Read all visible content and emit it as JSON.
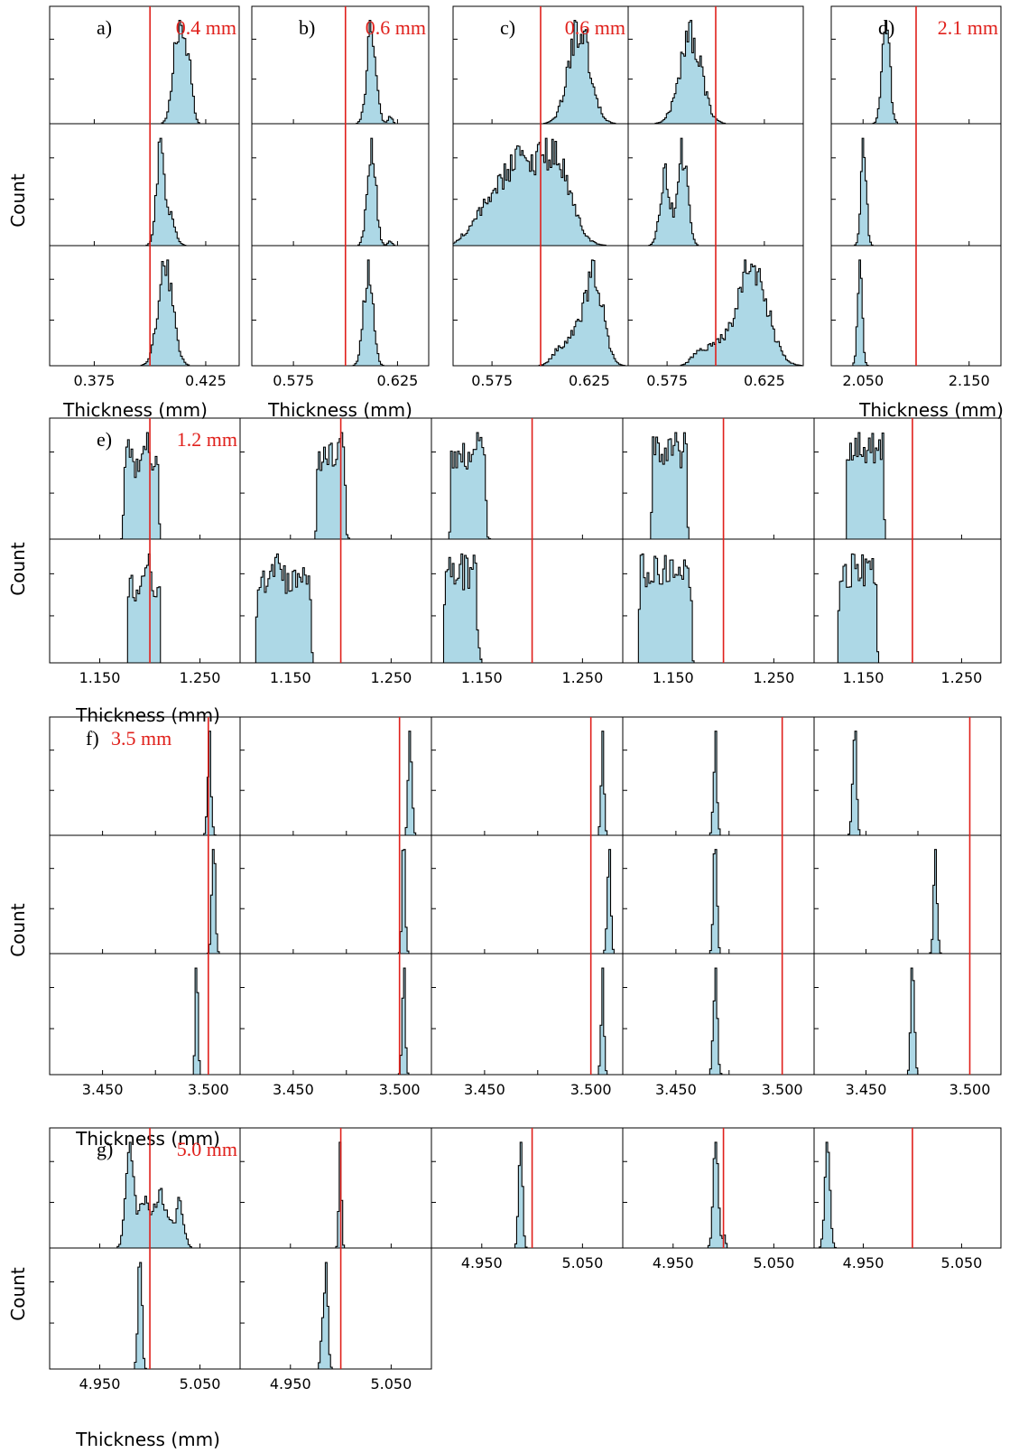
{
  "figure": {
    "count_label": "Count",
    "thickness_label": "Thickness (mm)"
  },
  "colors": {
    "fill": "#add8e6",
    "outline": "#000000",
    "nominal_line": "#e0201b"
  },
  "chart_data": [
    {
      "id": "a",
      "panel_label": "a)",
      "nominal_label": "0.4 mm",
      "nominal": 0.4,
      "type": "histogram",
      "xlim": [
        0.355,
        0.44
      ],
      "ticks": [
        0.375,
        0.425
      ],
      "tick_labels": [
        "0.375",
        "0.425"
      ],
      "xlabel": "Thickness (mm)",
      "ylabel": "Count",
      "columns": [
        [
          {
            "ymax": 1.0,
            "peaks": [
              {
                "c": 0.413,
                "w": 0.0024,
                "a": 1.0
              },
              {
                "c": 0.4175,
                "w": 0.0016,
                "a": 0.45
              }
            ]
          },
          {
            "ymax": 1.0,
            "peaks": [
              {
                "c": 0.4045,
                "w": 0.0018,
                "a": 1.0
              },
              {
                "c": 0.4085,
                "w": 0.0025,
                "a": 0.35
              }
            ]
          },
          {
            "ymax": 1.0,
            "peaks": [
              {
                "c": 0.407,
                "w": 0.0033,
                "a": 1.0
              }
            ]
          }
        ]
      ]
    },
    {
      "id": "b",
      "panel_label": "b)",
      "nominal_label": "0.6 mm",
      "nominal": 0.6,
      "type": "histogram",
      "xlim": [
        0.555,
        0.64
      ],
      "ticks": [
        0.575,
        0.625
      ],
      "tick_labels": [
        "0.575",
        "0.625"
      ],
      "xlabel": "Thickness (mm)",
      "ylabel": "Count",
      "columns": [
        [
          {
            "ymax": 1.0,
            "peaks": [
              {
                "c": 0.6125,
                "w": 0.0022,
                "a": 1.0
              },
              {
                "c": 0.6215,
                "w": 0.001,
                "a": 0.08
              }
            ]
          },
          {
            "ymax": 1.0,
            "peaks": [
              {
                "c": 0.6125,
                "w": 0.002,
                "a": 1.0
              },
              {
                "c": 0.6215,
                "w": 0.001,
                "a": 0.04
              }
            ]
          },
          {
            "ymax": 1.0,
            "peaks": [
              {
                "c": 0.611,
                "w": 0.0022,
                "a": 1.0
              }
            ]
          }
        ]
      ]
    },
    {
      "id": "c",
      "panel_label": "c)",
      "nominal_label": "0.6 mm",
      "nominal": 0.6,
      "type": "histogram",
      "xlim": [
        0.555,
        0.645
      ],
      "ticks": [
        0.575,
        0.625
      ],
      "tick_labels": [
        "0.575",
        "0.625"
      ],
      "xlabel": "",
      "ylabel": "Count",
      "columns": [
        [
          {
            "ymax": 1.0,
            "peaks": [
              {
                "c": 0.62,
                "w": 0.0055,
                "a": 1.0
              }
            ]
          },
          {
            "ymax": 1.0,
            "peaks": [
              {
                "c": 0.588,
                "w": 0.008,
                "a": 0.85
              },
              {
                "c": 0.607,
                "w": 0.008,
                "a": 0.9
              },
              {
                "c": 0.572,
                "w": 0.006,
                "a": 0.35
              },
              {
                "c": 0.56,
                "w": 0.003,
                "a": 0.06
              }
            ]
          },
          {
            "ymax": 1.0,
            "peaks": [
              {
                "c": 0.628,
                "w": 0.0045,
                "a": 0.95
              },
              {
                "c": 0.62,
                "w": 0.006,
                "a": 0.35
              },
              {
                "c": 0.61,
                "w": 0.004,
                "a": 0.15
              }
            ]
          }
        ],
        [
          {
            "ymax": 1.0,
            "peaks": [
              {
                "c": 0.587,
                "w": 0.0055,
                "a": 1.0
              }
            ]
          },
          {
            "ymax": 1.0,
            "peaks": [
              {
                "c": 0.574,
                "w": 0.0025,
                "a": 0.8
              },
              {
                "c": 0.583,
                "w": 0.0025,
                "a": 1.0
              }
            ]
          },
          {
            "ymax": 1.0,
            "peaks": [
              {
                "c": 0.619,
                "w": 0.0075,
                "a": 1.0
              },
              {
                "c": 0.6,
                "w": 0.006,
                "a": 0.2
              },
              {
                "c": 0.59,
                "w": 0.003,
                "a": 0.08
              }
            ]
          }
        ]
      ]
    },
    {
      "id": "d",
      "panel_label": "d)",
      "nominal_label": "2.1 mm",
      "nominal": 2.1,
      "type": "histogram",
      "xlim": [
        2.02,
        2.18
      ],
      "ticks": [
        2.05,
        2.15
      ],
      "tick_labels": [
        "2.050",
        "2.150"
      ],
      "xlabel": "Thickness (mm)",
      "ylabel": "Count",
      "columns": [
        [
          {
            "ymax": 1.0,
            "peaks": [
              {
                "c": 2.0715,
                "w": 0.0035,
                "a": 1.0
              }
            ]
          },
          {
            "ymax": 1.0,
            "peaks": [
              {
                "c": 2.0505,
                "w": 0.0025,
                "a": 1.0
              }
            ]
          },
          {
            "ymax": 1.0,
            "peaks": [
              {
                "c": 2.047,
                "w": 0.0022,
                "a": 1.0
              }
            ]
          }
        ]
      ]
    },
    {
      "id": "e",
      "panel_label": "e)",
      "nominal_label": "1.2 mm",
      "nominal": 1.2,
      "type": "histogram",
      "xlim": [
        1.1,
        1.29
      ],
      "ticks": [
        1.15,
        1.25
      ],
      "tick_labels": [
        "1.150",
        "1.250"
      ],
      "xlabel": "Thickness (mm)",
      "ylabel": "Count",
      "columns": [
        [
          {
            "ymax": 1.0,
            "flat": [
              1.173,
              1.21,
              0.7
            ],
            "peaks": [
              {
                "c": 1.18,
                "w": 0.003,
                "a": 0.25
              },
              {
                "c": 1.198,
                "w": 0.003,
                "a": 0.2
              }
            ]
          },
          {
            "ymax": 1.0,
            "flat": [
              1.177,
              1.211,
              0.65
            ],
            "peaks": [
              {
                "c": 1.198,
                "w": 0.003,
                "a": 0.25
              }
            ]
          }
        ],
        [
          {
            "ymax": 1.0,
            "flat": [
              1.175,
              1.205,
              0.6
            ],
            "peaks": [
              {
                "c": 1.2,
                "w": 0.003,
                "a": 0.3
              }
            ]
          },
          {
            "ymax": 1.0,
            "flat": [
              1.115,
              1.172,
              0.6
            ],
            "peaks": [
              {
                "c": 1.135,
                "w": 0.004,
                "a": 0.1
              }
            ]
          }
        ],
        [
          {
            "ymax": 1.0,
            "flat": [
              1.118,
              1.155,
              0.7
            ],
            "peaks": [
              {
                "c": 1.15,
                "w": 0.003,
                "a": 0.15
              }
            ]
          },
          {
            "ymax": 1.0,
            "flat": [
              1.112,
              1.145,
              0.6
            ],
            "peaks": [
              {
                "c": 1.145,
                "w": 0.002,
                "a": 0.2
              }
            ]
          }
        ],
        [
          {
            "ymax": 1.0,
            "flat": [
              1.128,
              1.165,
              0.7
            ],
            "peaks": []
          },
          {
            "ymax": 1.0,
            "flat": [
              1.115,
              1.17,
              0.7
            ],
            "peaks": []
          }
        ],
        [
          {
            "ymax": 1.0,
            "flat": [
              1.132,
              1.172,
              0.7
            ],
            "peaks": []
          },
          {
            "ymax": 1.0,
            "flat": [
              1.124,
              1.165,
              0.7
            ],
            "peaks": []
          }
        ]
      ]
    },
    {
      "id": "f",
      "panel_label": "f)",
      "nominal_label": "3.5 mm",
      "nominal": 3.5,
      "type": "histogram",
      "xlim": [
        3.425,
        3.515
      ],
      "ticks": [
        3.45,
        3.5
      ],
      "tick_labels": [
        "3.450",
        "3.500"
      ],
      "xlabel": "Thickness (mm)",
      "ylabel": "Count",
      "nominal_x": [
        3.5,
        3.5,
        3.5,
        3.5,
        3.5
      ],
      "columns_xlim": [
        [
          3.425,
          3.515
        ],
        [
          3.425,
          3.515
        ],
        [
          3.425,
          3.515
        ],
        [
          3.425,
          3.515
        ],
        [
          3.425,
          3.515
        ]
      ],
      "columns": [
        [
          {
            "ymax": 1.0,
            "peaks": [
              {
                "c": 3.5005,
                "w": 0.0008,
                "a": 1.0
              }
            ]
          },
          {
            "ymax": 1.0,
            "peaks": [
              {
                "c": 3.5025,
                "w": 0.0008,
                "a": 1.0
              }
            ]
          },
          {
            "ymax": 1.0,
            "peaks": [
              {
                "c": 3.4945,
                "w": 0.0006,
                "a": 1.0
              }
            ]
          }
        ],
        [
          {
            "ymax": 1.0,
            "peaks": [
              {
                "c": 3.505,
                "w": 0.0008,
                "a": 1.0
              }
            ]
          },
          {
            "ymax": 1.0,
            "peaks": [
              {
                "c": 3.502,
                "w": 0.0007,
                "a": 1.0
              }
            ]
          },
          {
            "ymax": 1.0,
            "peaks": [
              {
                "c": 3.502,
                "w": 0.0007,
                "a": 1.0
              }
            ]
          }
        ],
        [
          {
            "ymax": 1.0,
            "peaks": [
              {
                "c": 3.5055,
                "w": 0.0007,
                "a": 1.0
              }
            ]
          },
          {
            "ymax": 1.0,
            "peaks": [
              {
                "c": 3.5085,
                "w": 0.0008,
                "a": 1.0
              }
            ]
          },
          {
            "ymax": 1.0,
            "peaks": [
              {
                "c": 3.5055,
                "w": 0.0007,
                "a": 1.0
              }
            ]
          }
        ],
        [
          {
            "ymax": 1.0,
            "peaks": [
              {
                "c": 3.4685,
                "w": 0.0008,
                "a": 1.0
              }
            ]
          },
          {
            "ymax": 1.0,
            "peaks": [
              {
                "c": 3.4685,
                "w": 0.0008,
                "a": 1.0
              }
            ]
          },
          {
            "ymax": 1.0,
            "peaks": [
              {
                "c": 3.4685,
                "w": 0.0009,
                "a": 1.0
              }
            ]
          }
        ],
        [
          {
            "ymax": 1.0,
            "peaks": [
              {
                "c": 3.4445,
                "w": 0.0009,
                "a": 1.0
              }
            ]
          },
          {
            "ymax": 1.0,
            "peaks": [
              {
                "c": 3.4835,
                "w": 0.0008,
                "a": 1.0
              }
            ]
          },
          {
            "ymax": 1.0,
            "peaks": [
              {
                "c": 3.4725,
                "w": 0.0008,
                "a": 1.0
              }
            ]
          }
        ]
      ]
    },
    {
      "id": "g",
      "panel_label": "g)",
      "nominal_label": "5.0 mm",
      "nominal": 5.0,
      "type": "histogram",
      "xlim": [
        4.9,
        5.09
      ],
      "ticks": [
        4.95,
        5.05
      ],
      "tick_labels": [
        "4.950",
        "5.050"
      ],
      "xlabel": "Thickness (mm)",
      "ylabel": "Count",
      "columns": [
        [
          {
            "ymax": 1.0,
            "peaks": [
              {
                "c": 4.98,
                "w": 0.004,
                "a": 1.0
              },
              {
                "c": 4.993,
                "w": 0.004,
                "a": 0.45
              },
              {
                "c": 5.005,
                "w": 0.006,
                "a": 0.4
              },
              {
                "c": 5.03,
                "w": 0.004,
                "a": 0.45
              },
              {
                "c": 5.015,
                "w": 0.006,
                "a": 0.35
              }
            ]
          },
          {
            "ymax": 1.0,
            "peaks": [
              {
                "c": 4.99,
                "w": 0.0018,
                "a": 1.0
              }
            ]
          }
        ],
        [
          {
            "ymax": 1.0,
            "peaks": [
              {
                "c": 4.9995,
                "w": 0.0012,
                "a": 1.0
              }
            ]
          },
          {
            "ymax": 1.0,
            "peaks": [
              {
                "c": 4.9855,
                "w": 0.0018,
                "a": 1.0
              },
              {
                "c": 4.9815,
                "w": 0.0015,
                "a": 0.35
              }
            ]
          }
        ],
        [
          {
            "ymax": 1.0,
            "peaks": [
              {
                "c": 4.9885,
                "w": 0.0018,
                "a": 1.0
              }
            ]
          }
        ],
        [
          {
            "ymax": 1.0,
            "peaks": [
              {
                "c": 4.9925,
                "w": 0.0025,
                "a": 1.0
              },
              {
                "c": 5.001,
                "w": 0.0012,
                "a": 0.15
              }
            ]
          }
        ],
        [
          {
            "ymax": 1.0,
            "peaks": [
              {
                "c": 4.9135,
                "w": 0.0025,
                "a": 1.0
              }
            ]
          }
        ]
      ]
    }
  ]
}
